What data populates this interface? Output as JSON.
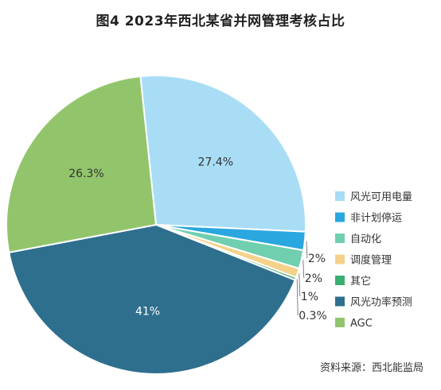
{
  "chart_data": {
    "type": "pie",
    "title": "图4  2023年西北某省并网管理考核占比",
    "slices": [
      {
        "label": "风光可用电量",
        "value": 27.4,
        "display": "27.4%",
        "color": "#a8ddf5"
      },
      {
        "label": "非计划停运",
        "value": 2,
        "display": "2%",
        "color": "#2aa7df"
      },
      {
        "label": "自动化",
        "value": 2,
        "display": "2%",
        "color": "#6fcfae"
      },
      {
        "label": "调度管理",
        "value": 1,
        "display": "1%",
        "color": "#f4d28a"
      },
      {
        "label": "其它",
        "value": 0.3,
        "display": "0.3%",
        "color": "#3cae6f"
      },
      {
        "label": "风光功率预测",
        "value": 41,
        "display": "41%",
        "color": "#2e6f8e"
      },
      {
        "label": "AGC",
        "value": 26.3,
        "display": "26.3%",
        "color": "#92c56b"
      }
    ],
    "legend_position": "right"
  },
  "source": "资料来源：西北能监局"
}
